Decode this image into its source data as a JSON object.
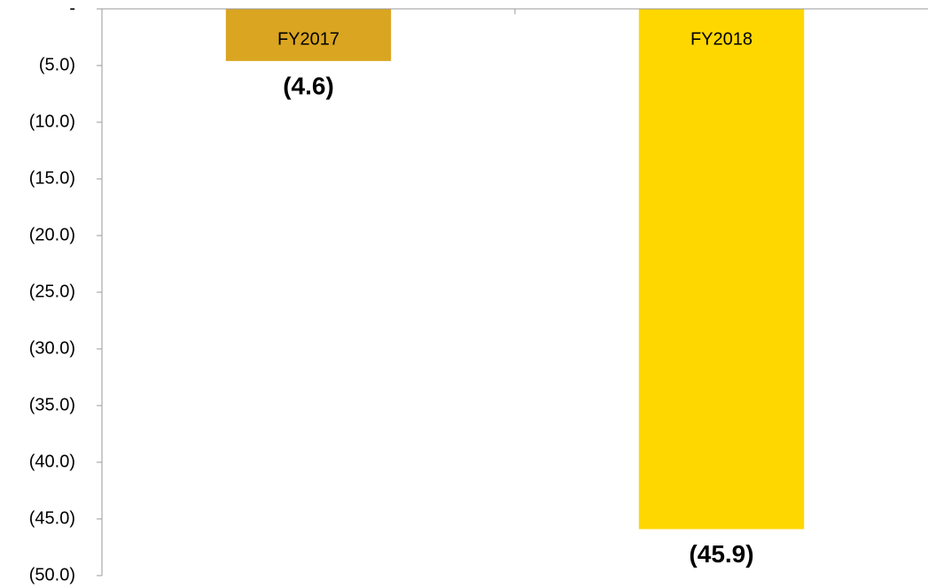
{
  "chart_data": {
    "type": "bar",
    "categories": [
      "FY2017",
      "FY2018"
    ],
    "values": [
      -4.6,
      -45.9
    ],
    "value_labels": [
      "(4.6)",
      "(45.9)"
    ],
    "colors": [
      "#daa520",
      "#ffd700"
    ],
    "ylim": [
      -50,
      0
    ],
    "yticks": [
      {
        "value": 0,
        "label": "-"
      },
      {
        "value": -5,
        "label": "(5.0)"
      },
      {
        "value": -10,
        "label": "(10.0)"
      },
      {
        "value": -15,
        "label": "(15.0)"
      },
      {
        "value": -20,
        "label": "(20.0)"
      },
      {
        "value": -25,
        "label": "(25.0)"
      },
      {
        "value": -30,
        "label": "(30.0)"
      },
      {
        "value": -35,
        "label": "(35.0)"
      },
      {
        "value": -40,
        "label": "(40.0)"
      },
      {
        "value": -45,
        "label": "(45.0)"
      },
      {
        "value": -50,
        "label": "(50.0)"
      }
    ]
  }
}
